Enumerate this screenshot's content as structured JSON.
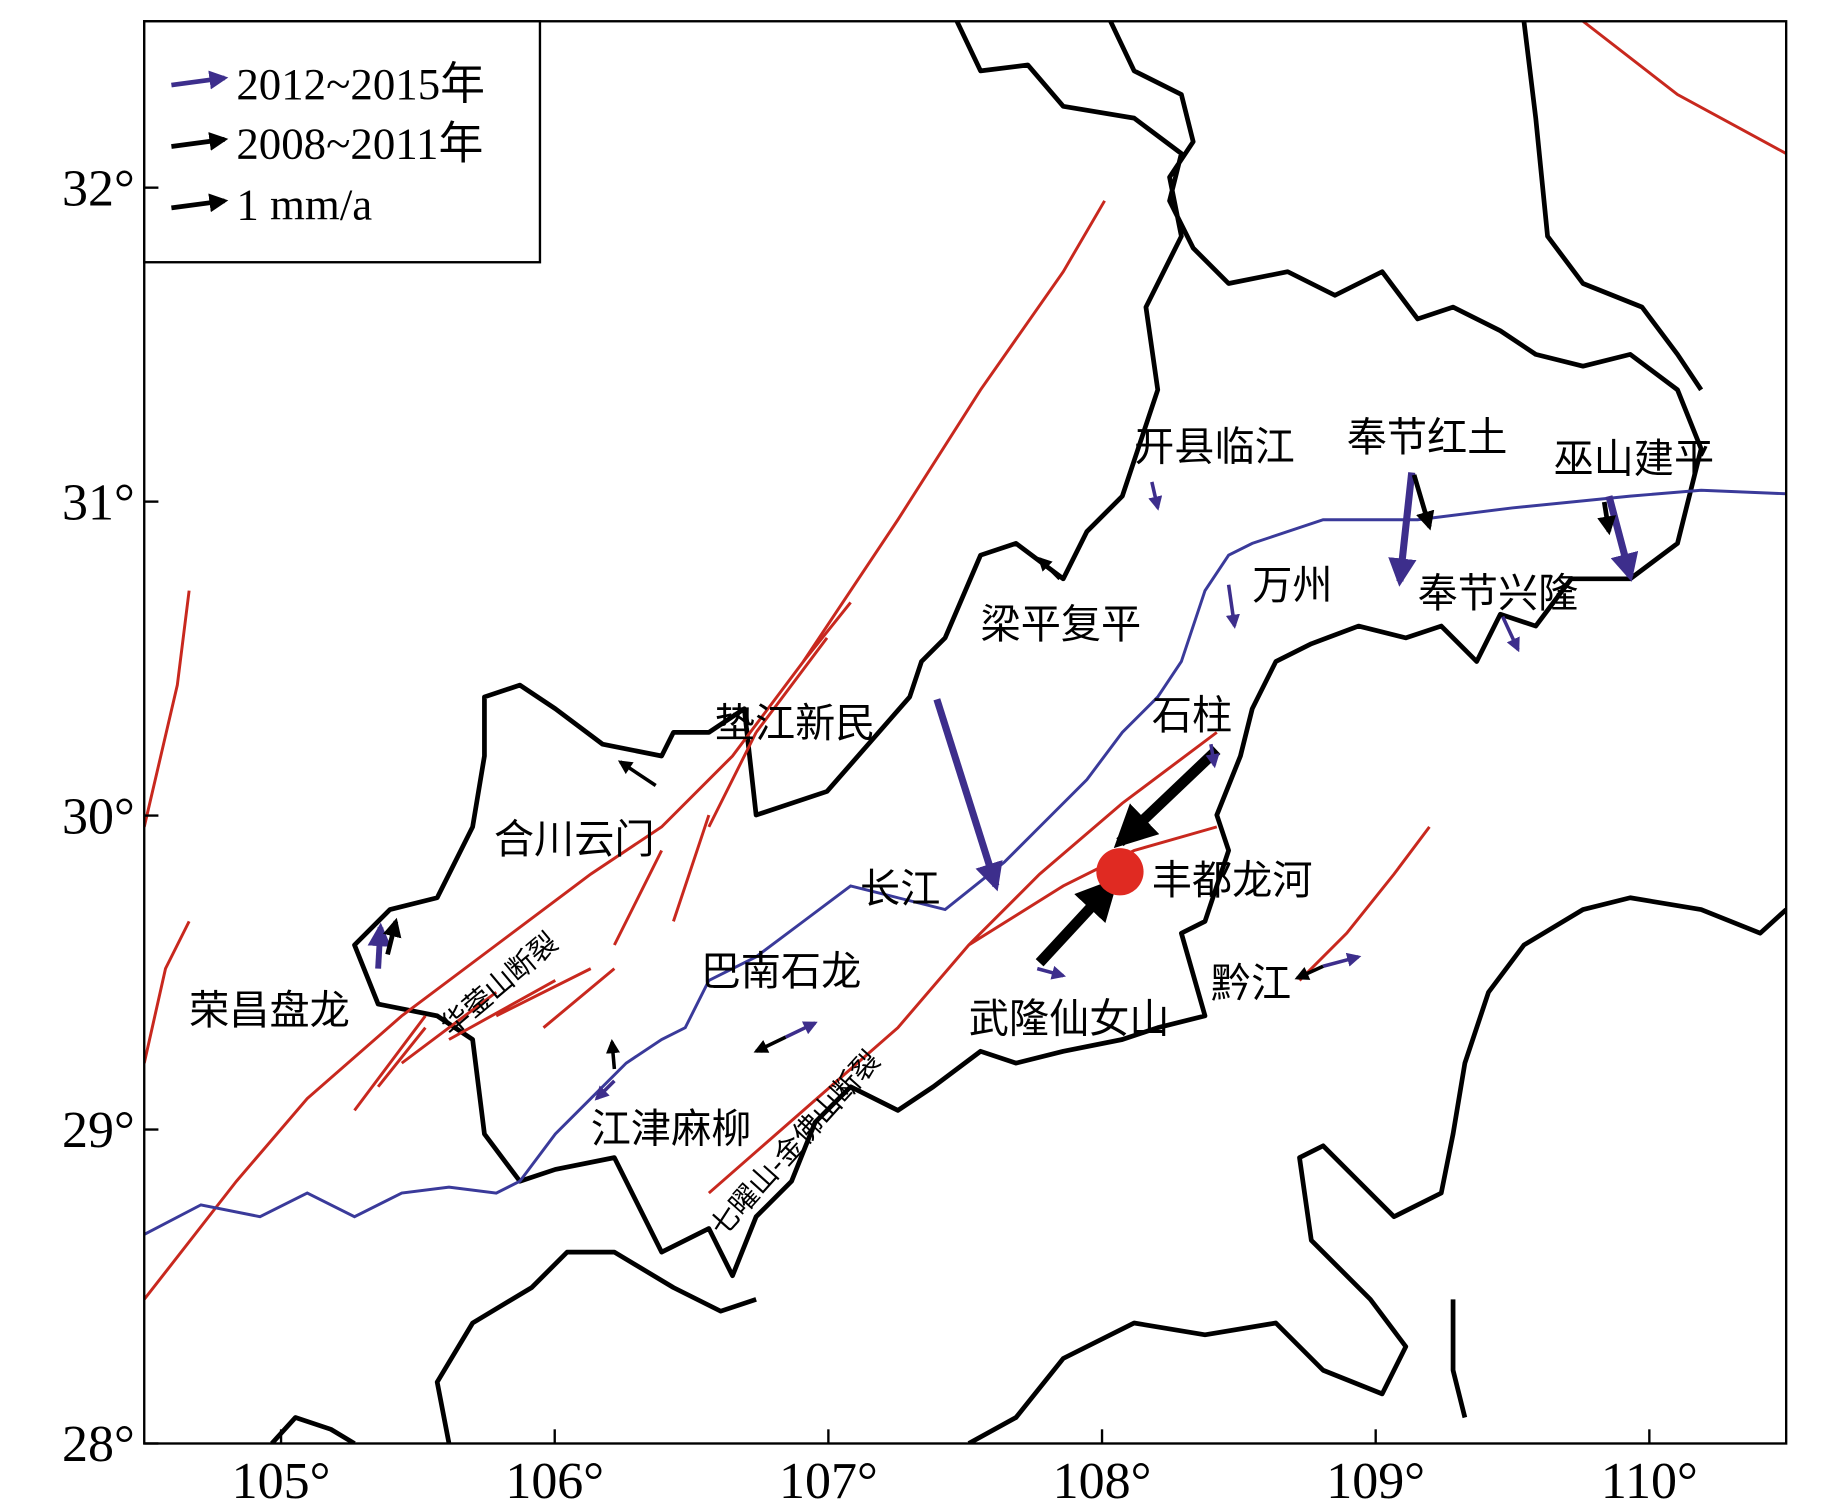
{
  "axes": {
    "xlim": [
      104.5,
      110.5
    ],
    "ylim": [
      28,
      32.53
    ],
    "xticks": [
      {
        "value": 105,
        "label": "105°"
      },
      {
        "value": 106,
        "label": "106°"
      },
      {
        "value": 107,
        "label": "107°"
      },
      {
        "value": 108,
        "label": "108°"
      },
      {
        "value": 109,
        "label": "109°"
      },
      {
        "value": 110,
        "label": "110°"
      }
    ],
    "yticks": [
      {
        "value": 28,
        "label": "28°"
      },
      {
        "value": 29,
        "label": "29°"
      },
      {
        "value": 30,
        "label": "30°"
      },
      {
        "value": 31,
        "label": "31°"
      },
      {
        "value": 32,
        "label": "32°"
      }
    ]
  },
  "legend": {
    "items": [
      "2012~2015年",
      "2008~2011年",
      "1 mm/a"
    ]
  },
  "places": [
    "开县临江",
    "奉节红土",
    "巫山建平",
    "万州",
    "梁平复平",
    "奉节兴隆",
    "垫江新民",
    "石柱",
    "合川云门",
    "长江",
    "丰都龙河",
    "巴南石龙",
    "荣昌盘龙",
    "武隆仙女山",
    "黔江",
    "江津麻柳"
  ],
  "faults": [
    "华蓥山断裂",
    "七曜山-金佛山断裂"
  ]
}
